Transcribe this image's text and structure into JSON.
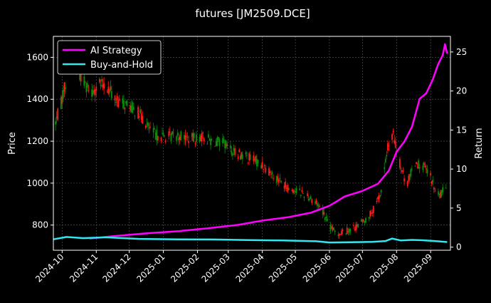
{
  "chart_data": {
    "type": "line",
    "title": "futures [JM2509.DCE]",
    "xlabel": "",
    "ylabel": "Price",
    "ylabel_right": "Return",
    "x_ticks": [
      "2024-10",
      "2024-11",
      "2024-12",
      "2025-01",
      "2025-02",
      "2025-03",
      "2025-04",
      "2025-05",
      "2025-06",
      "2025-07",
      "2025-08",
      "2025-09"
    ],
    "x_range": [
      "2024-09-23",
      "2025-09-19"
    ],
    "y_left": {
      "range": [
        680,
        1700
      ],
      "ticks": [
        800,
        1000,
        1200,
        1400,
        1600
      ]
    },
    "y_right": {
      "range": [
        -0.4,
        27
      ],
      "ticks": [
        0,
        5,
        10,
        15,
        20,
        25
      ]
    },
    "grid": true,
    "legend": {
      "position": "top-left",
      "entries": [
        "AI Strategy",
        "Buy-and-Hold"
      ]
    },
    "colors": {
      "up": "#ff1a1a",
      "down": "#0c8a0c",
      "ai": "#ff00ff",
      "bh": "#33e6ee",
      "grid": "#5a5a5a",
      "text": "#ffffff",
      "bg": "#000000"
    },
    "price_path": [
      [
        "2024-09-25",
        1290
      ],
      [
        "2024-09-30",
        1380
      ],
      [
        "2024-10-08",
        1580
      ],
      [
        "2024-10-15",
        1540
      ],
      [
        "2024-10-22",
        1470
      ],
      [
        "2024-10-28",
        1440
      ],
      [
        "2024-11-05",
        1470
      ],
      [
        "2024-11-12",
        1450
      ],
      [
        "2024-11-20",
        1390
      ],
      [
        "2024-12-01",
        1370
      ],
      [
        "2024-12-10",
        1330
      ],
      [
        "2024-12-18",
        1270
      ],
      [
        "2024-12-25",
        1230
      ],
      [
        "2025-01-05",
        1220
      ],
      [
        "2025-01-15",
        1230
      ],
      [
        "2025-01-25",
        1210
      ],
      [
        "2025-02-05",
        1220
      ],
      [
        "2025-02-15",
        1200
      ],
      [
        "2025-02-25",
        1190
      ],
      [
        "2025-03-05",
        1150
      ],
      [
        "2025-03-15",
        1130
      ],
      [
        "2025-03-25",
        1110
      ],
      [
        "2025-04-05",
        1070
      ],
      [
        "2025-04-15",
        1020
      ],
      [
        "2025-04-25",
        975
      ],
      [
        "2025-05-05",
        960
      ],
      [
        "2025-05-15",
        930
      ],
      [
        "2025-05-25",
        880
      ],
      [
        "2025-06-01",
        790
      ],
      [
        "2025-06-08",
        760
      ],
      [
        "2025-06-15",
        770
      ],
      [
        "2025-06-25",
        790
      ],
      [
        "2025-07-05",
        830
      ],
      [
        "2025-07-12",
        880
      ],
      [
        "2025-07-18",
        960
      ],
      [
        "2025-07-24",
        1170
      ],
      [
        "2025-07-29",
        1230
      ],
      [
        "2025-08-03",
        1110
      ],
      [
        "2025-08-10",
        990
      ],
      [
        "2025-08-18",
        1100
      ],
      [
        "2025-08-25",
        1080
      ],
      [
        "2025-09-01",
        1030
      ],
      [
        "2025-09-05",
        960
      ],
      [
        "2025-09-10",
        940
      ],
      [
        "2025-09-15",
        990
      ]
    ],
    "series": [
      {
        "name": "AI Strategy",
        "axis": "right",
        "points": [
          [
            "2024-10-26",
            1.1
          ],
          [
            "2024-11-20",
            1.45
          ],
          [
            "2024-12-20",
            1.8
          ],
          [
            "2025-01-15",
            2.05
          ],
          [
            "2025-02-10",
            2.4
          ],
          [
            "2025-03-10",
            2.85
          ],
          [
            "2025-04-01",
            3.4
          ],
          [
            "2025-04-25",
            3.85
          ],
          [
            "2025-05-15",
            4.4
          ],
          [
            "2025-06-01",
            5.3
          ],
          [
            "2025-06-15",
            6.5
          ],
          [
            "2025-07-01",
            7.2
          ],
          [
            "2025-07-15",
            8.1
          ],
          [
            "2025-07-25",
            9.8
          ],
          [
            "2025-08-01",
            12.2
          ],
          [
            "2025-08-08",
            13.5
          ],
          [
            "2025-08-15",
            15.4
          ],
          [
            "2025-08-22",
            19.0
          ],
          [
            "2025-08-28",
            19.7
          ],
          [
            "2025-09-03",
            21.5
          ],
          [
            "2025-09-08",
            23.5
          ],
          [
            "2025-09-12",
            24.6
          ],
          [
            "2025-09-14",
            26.0
          ],
          [
            "2025-09-16",
            24.8
          ]
        ]
      },
      {
        "name": "Buy-and-Hold",
        "axis": "right",
        "points": [
          [
            "2024-09-23",
            1.0
          ],
          [
            "2024-10-05",
            1.3
          ],
          [
            "2024-10-20",
            1.15
          ],
          [
            "2024-11-10",
            1.25
          ],
          [
            "2024-12-10",
            1.05
          ],
          [
            "2025-01-15",
            1.0
          ],
          [
            "2025-02-15",
            0.98
          ],
          [
            "2025-03-20",
            0.9
          ],
          [
            "2025-04-20",
            0.85
          ],
          [
            "2025-05-20",
            0.75
          ],
          [
            "2025-06-01",
            0.6
          ],
          [
            "2025-06-20",
            0.62
          ],
          [
            "2025-07-10",
            0.68
          ],
          [
            "2025-07-22",
            0.78
          ],
          [
            "2025-07-28",
            1.1
          ],
          [
            "2025-08-05",
            0.85
          ],
          [
            "2025-08-15",
            0.92
          ],
          [
            "2025-08-25",
            0.88
          ],
          [
            "2025-09-05",
            0.78
          ],
          [
            "2025-09-16",
            0.65
          ]
        ]
      }
    ]
  }
}
